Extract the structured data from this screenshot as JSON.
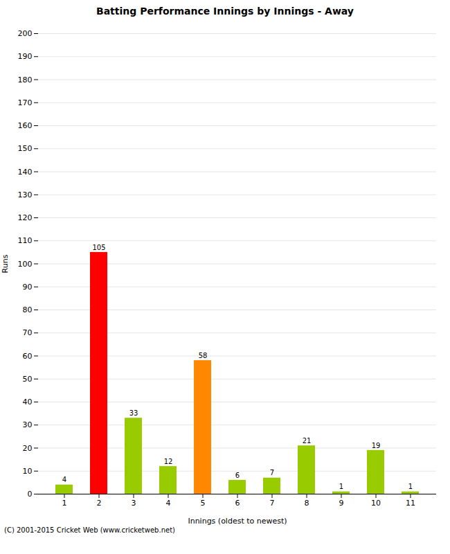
{
  "chart_data": {
    "type": "bar",
    "title": "Batting Performance Innings by Innings - Away",
    "xlabel": "Innings (oldest to newest)",
    "ylabel": "Runs",
    "categories": [
      1,
      2,
      3,
      4,
      5,
      6,
      7,
      8,
      9,
      10,
      11
    ],
    "values": [
      4,
      105,
      33,
      12,
      58,
      6,
      7,
      21,
      1,
      19,
      1
    ],
    "colors": [
      "#99cc00",
      "#ff0000",
      "#99cc00",
      "#99cc00",
      "#ff8800",
      "#99cc00",
      "#99cc00",
      "#99cc00",
      "#99cc00",
      "#99cc00",
      "#99cc00"
    ],
    "ylim": [
      0,
      200
    ],
    "yticks": [
      0,
      10,
      20,
      30,
      40,
      50,
      60,
      70,
      80,
      90,
      100,
      110,
      120,
      130,
      140,
      150,
      160,
      170,
      180,
      190,
      200
    ],
    "grid": true,
    "data_labels": true,
    "annotations": [
      "(C) 2001-2015 Cricket Web (www.cricketweb.net)"
    ]
  }
}
